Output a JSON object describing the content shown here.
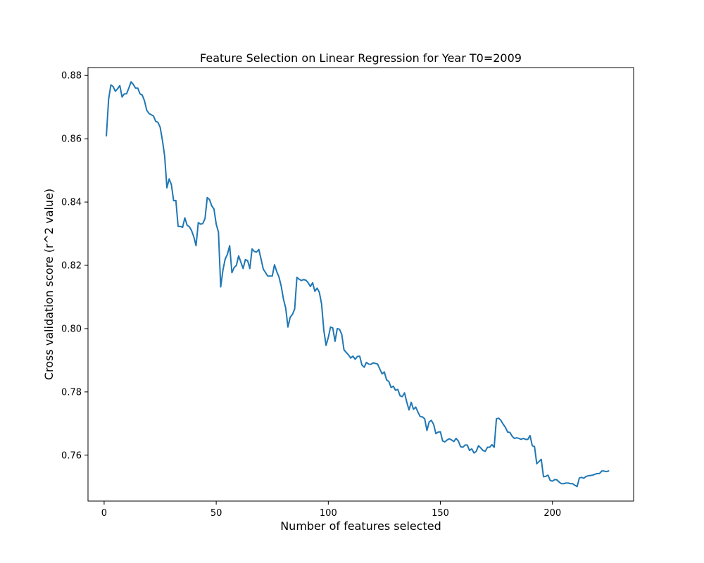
{
  "chart_data": {
    "type": "line",
    "title": "Feature Selection on Linear Regression for Year T0=2009",
    "xlabel": "Number of features selected",
    "ylabel": "Cross validation score (r^2 value)",
    "xlim": [
      -7.2,
      236.2
    ],
    "ylim": [
      0.7455,
      0.8825
    ],
    "xticks": [
      0,
      50,
      100,
      150,
      200
    ],
    "yticks": [
      0.76,
      0.78,
      0.8,
      0.82,
      0.84,
      0.86,
      0.88
    ],
    "ytick_labels": [
      "0.76",
      "0.78",
      "0.80",
      "0.82",
      "0.84",
      "0.86",
      "0.88"
    ],
    "grid": false,
    "series": [
      {
        "color": "#1f77b4",
        "points": [
          [
            1,
            0.861
          ],
          [
            2,
            0.8725
          ],
          [
            3,
            0.877
          ],
          [
            4,
            0.8765
          ],
          [
            5,
            0.875
          ],
          [
            6,
            0.8758
          ],
          [
            7,
            0.8768
          ],
          [
            8,
            0.8732
          ],
          [
            9,
            0.8742
          ],
          [
            10,
            0.8742
          ],
          [
            11,
            0.876
          ],
          [
            12,
            0.878
          ],
          [
            13,
            0.8772
          ],
          [
            14,
            0.876
          ],
          [
            15,
            0.876
          ],
          [
            16,
            0.8742
          ],
          [
            17,
            0.8738
          ],
          [
            18,
            0.872
          ],
          [
            19,
            0.869
          ],
          [
            20,
            0.868
          ],
          [
            21,
            0.8676
          ],
          [
            22,
            0.8672
          ],
          [
            23,
            0.8655
          ],
          [
            24,
            0.8652
          ],
          [
            25,
            0.8636
          ],
          [
            26,
            0.8595
          ],
          [
            27,
            0.8545
          ],
          [
            28,
            0.8445
          ],
          [
            29,
            0.8473
          ],
          [
            30,
            0.8455
          ],
          [
            31,
            0.8404
          ],
          [
            32,
            0.8405
          ],
          [
            33,
            0.8323
          ],
          [
            34,
            0.8323
          ],
          [
            35,
            0.832
          ],
          [
            36,
            0.835
          ],
          [
            37,
            0.8327
          ],
          [
            38,
            0.8322
          ],
          [
            39,
            0.831
          ],
          [
            40,
            0.829
          ],
          [
            41,
            0.8262
          ],
          [
            42,
            0.8335
          ],
          [
            43,
            0.833
          ],
          [
            44,
            0.8332
          ],
          [
            45,
            0.8348
          ],
          [
            46,
            0.8414
          ],
          [
            47,
            0.8408
          ],
          [
            48,
            0.8388
          ],
          [
            49,
            0.8378
          ],
          [
            50,
            0.833
          ],
          [
            51,
            0.8305
          ],
          [
            52,
            0.8132
          ],
          [
            53,
            0.8185
          ],
          [
            54,
            0.822
          ],
          [
            55,
            0.8235
          ],
          [
            56,
            0.8262
          ],
          [
            57,
            0.8177
          ],
          [
            58,
            0.8193
          ],
          [
            59,
            0.82
          ],
          [
            60,
            0.823
          ],
          [
            61,
            0.821
          ],
          [
            62,
            0.819
          ],
          [
            63,
            0.8218
          ],
          [
            64,
            0.8215
          ],
          [
            65,
            0.819
          ],
          [
            66,
            0.8252
          ],
          [
            67,
            0.8244
          ],
          [
            68,
            0.8242
          ],
          [
            69,
            0.825
          ],
          [
            70,
            0.822
          ],
          [
            71,
            0.8188
          ],
          [
            72,
            0.8177
          ],
          [
            73,
            0.8166
          ],
          [
            74,
            0.8166
          ],
          [
            75,
            0.8166
          ],
          [
            76,
            0.8202
          ],
          [
            77,
            0.818
          ],
          [
            78,
            0.8163
          ],
          [
            79,
            0.8134
          ],
          [
            80,
            0.8093
          ],
          [
            81,
            0.8065
          ],
          [
            82,
            0.8005
          ],
          [
            83,
            0.8036
          ],
          [
            84,
            0.8045
          ],
          [
            85,
            0.8062
          ],
          [
            86,
            0.8162
          ],
          [
            87,
            0.8156
          ],
          [
            88,
            0.8152
          ],
          [
            89,
            0.8155
          ],
          [
            90,
            0.8153
          ],
          [
            91,
            0.8145
          ],
          [
            92,
            0.8133
          ],
          [
            93,
            0.8145
          ],
          [
            94,
            0.8118
          ],
          [
            95,
            0.8128
          ],
          [
            96,
            0.8115
          ],
          [
            97,
            0.8078
          ],
          [
            98,
            0.7995
          ],
          [
            99,
            0.7947
          ],
          [
            100,
            0.7972
          ],
          [
            101,
            0.8005
          ],
          [
            102,
            0.8002
          ],
          [
            103,
            0.796
          ],
          [
            104,
            0.8
          ],
          [
            105,
            0.7998
          ],
          [
            106,
            0.7982
          ],
          [
            107,
            0.7933
          ],
          [
            108,
            0.7925
          ],
          [
            109,
            0.7917
          ],
          [
            110,
            0.7907
          ],
          [
            111,
            0.7913
          ],
          [
            112,
            0.7903
          ],
          [
            113,
            0.7912
          ],
          [
            114,
            0.7913
          ],
          [
            115,
            0.7885
          ],
          [
            116,
            0.7878
          ],
          [
            117,
            0.7893
          ],
          [
            118,
            0.7888
          ],
          [
            119,
            0.7887
          ],
          [
            120,
            0.7892
          ],
          [
            121,
            0.789
          ],
          [
            122,
            0.7888
          ],
          [
            123,
            0.7872
          ],
          [
            124,
            0.7857
          ],
          [
            125,
            0.7863
          ],
          [
            126,
            0.7838
          ],
          [
            127,
            0.7833
          ],
          [
            128,
            0.7814
          ],
          [
            129,
            0.7818
          ],
          [
            130,
            0.7805
          ],
          [
            131,
            0.7808
          ],
          [
            132,
            0.7788
          ],
          [
            133,
            0.7785
          ],
          [
            134,
            0.7797
          ],
          [
            135,
            0.7768
          ],
          [
            136,
            0.7743
          ],
          [
            137,
            0.7767
          ],
          [
            138,
            0.7745
          ],
          [
            139,
            0.7752
          ],
          [
            140,
            0.7736
          ],
          [
            141,
            0.7722
          ],
          [
            142,
            0.7721
          ],
          [
            143,
            0.7715
          ],
          [
            144,
            0.7678
          ],
          [
            145,
            0.7705
          ],
          [
            146,
            0.771
          ],
          [
            147,
            0.7697
          ],
          [
            148,
            0.7668
          ],
          [
            149,
            0.7673
          ],
          [
            150,
            0.7674
          ],
          [
            151,
            0.7645
          ],
          [
            152,
            0.7642
          ],
          [
            153,
            0.7648
          ],
          [
            154,
            0.7652
          ],
          [
            155,
            0.7648
          ],
          [
            156,
            0.7643
          ],
          [
            157,
            0.7653
          ],
          [
            158,
            0.7645
          ],
          [
            159,
            0.7627
          ],
          [
            160,
            0.7625
          ],
          [
            161,
            0.7632
          ],
          [
            162,
            0.7632
          ],
          [
            163,
            0.7615
          ],
          [
            164,
            0.762
          ],
          [
            165,
            0.7607
          ],
          [
            166,
            0.7612
          ],
          [
            167,
            0.763
          ],
          [
            168,
            0.7623
          ],
          [
            169,
            0.7615
          ],
          [
            170,
            0.7612
          ],
          [
            171,
            0.7625
          ],
          [
            172,
            0.7625
          ],
          [
            173,
            0.7633
          ],
          [
            174,
            0.7625
          ],
          [
            175,
            0.7715
          ],
          [
            176,
            0.7717
          ],
          [
            177,
            0.771
          ],
          [
            178,
            0.7698
          ],
          [
            179,
            0.7688
          ],
          [
            180,
            0.7673
          ],
          [
            181,
            0.7672
          ],
          [
            182,
            0.766
          ],
          [
            183,
            0.7653
          ],
          [
            184,
            0.7655
          ],
          [
            185,
            0.7653
          ],
          [
            186,
            0.765
          ],
          [
            187,
            0.7653
          ],
          [
            188,
            0.765
          ],
          [
            189,
            0.765
          ],
          [
            190,
            0.7662
          ],
          [
            191,
            0.763
          ],
          [
            192,
            0.7627
          ],
          [
            193,
            0.7573
          ],
          [
            194,
            0.758
          ],
          [
            195,
            0.7587
          ],
          [
            196,
            0.7532
          ],
          [
            197,
            0.7533
          ],
          [
            198,
            0.7537
          ],
          [
            199,
            0.752
          ],
          [
            200,
            0.7518
          ],
          [
            201,
            0.7523
          ],
          [
            202,
            0.7522
          ],
          [
            203,
            0.7515
          ],
          [
            204,
            0.751
          ],
          [
            205,
            0.751
          ],
          [
            206,
            0.7512
          ],
          [
            207,
            0.7512
          ],
          [
            208,
            0.751
          ],
          [
            209,
            0.751
          ],
          [
            210,
            0.7505
          ],
          [
            211,
            0.7501
          ],
          [
            212,
            0.7528
          ],
          [
            213,
            0.753
          ],
          [
            214,
            0.7527
          ],
          [
            215,
            0.7533
          ],
          [
            216,
            0.7535
          ],
          [
            217,
            0.7536
          ],
          [
            218,
            0.7537
          ],
          [
            219,
            0.754
          ],
          [
            220,
            0.7542
          ],
          [
            221,
            0.7542
          ],
          [
            222,
            0.755
          ],
          [
            223,
            0.755
          ],
          [
            224,
            0.7548
          ],
          [
            225,
            0.755
          ]
        ]
      }
    ]
  }
}
